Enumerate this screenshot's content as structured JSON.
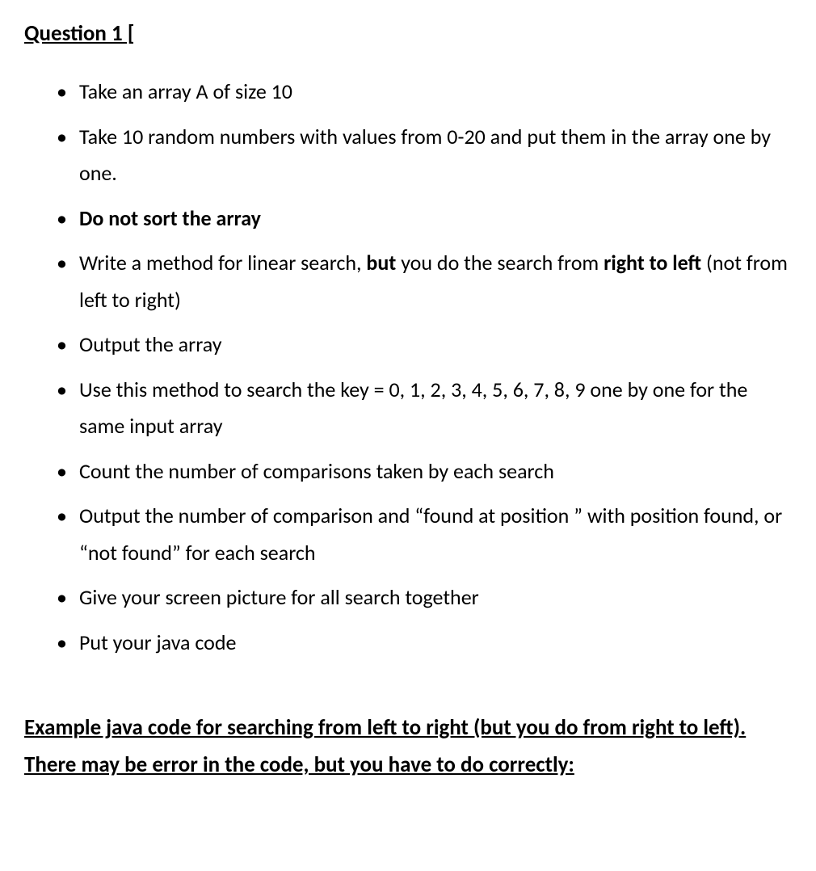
{
  "document": {
    "heading": "Question 1 [",
    "bullets": [
      {
        "segments": [
          {
            "text": "Take an array A of size 10",
            "bold": false
          }
        ]
      },
      {
        "segments": [
          {
            "text": "Take 10 random numbers with values from 0-20 and put them in the array one by one.",
            "bold": false
          }
        ]
      },
      {
        "segments": [
          {
            "text": "Do not sort the array",
            "bold": true
          }
        ]
      },
      {
        "segments": [
          {
            "text": "Write a method for linear search, ",
            "bold": false
          },
          {
            "text": "but",
            "bold": true
          },
          {
            "text": " you do the search from ",
            "bold": false
          },
          {
            "text": "right to left",
            "bold": true
          },
          {
            "text": " (not from left to right)",
            "bold": false
          }
        ]
      },
      {
        "segments": [
          {
            "text": "Output the array",
            "bold": false
          }
        ]
      },
      {
        "segments": [
          {
            "text": "Use this method to search the key = 0, 1, 2, 3, 4, 5, 6, 7, 8, 9 one by one for the same input array",
            "bold": false
          }
        ]
      },
      {
        "segments": [
          {
            "text": "Count the number of comparisons taken by each search",
            "bold": false
          }
        ]
      },
      {
        "segments": [
          {
            "text": "Output the number of comparison and “found at position ” with position found, or “not found” for each  search",
            "bold": false
          }
        ]
      },
      {
        "segments": [
          {
            "text": "Give your screen picture for all search together",
            "bold": false
          }
        ]
      },
      {
        "segments": [
          {
            "text": "Put your java code",
            "bold": false
          }
        ]
      }
    ],
    "example_heading": "Example java code for searching from left to right (but you do from right to left). There may be error in the code, but you have to do correctly:",
    "colors": {
      "background": "#ffffff",
      "text": "#000000"
    },
    "typography": {
      "body_fontsize": 26,
      "heading_fontsize": 27,
      "font_family": "Calibri"
    }
  }
}
